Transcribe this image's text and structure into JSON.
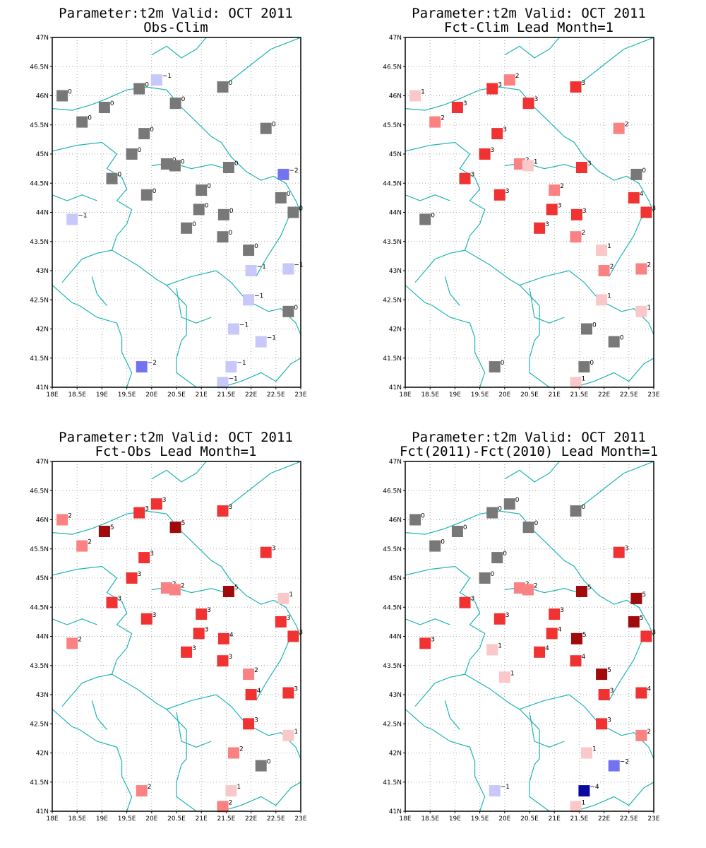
{
  "figure": {
    "colors": {
      "-4": "#0a0aa0",
      "-2": "#7373f0",
      "-1": "#c8c8fa",
      "0": "#787878",
      "1": "#fac8c8",
      "2": "#fa8282",
      "3": "#f03232",
      "4": "#f03232",
      "5": "#a00a0a"
    },
    "coast_color": "#1eb4b4",
    "grid": true
  },
  "chart_data": [
    {
      "type": "scatter",
      "title": "Parameter:t2m Valid: OCT 2011",
      "subtitle": "Obs-Clim",
      "xlim": [
        18,
        23
      ],
      "ylim": [
        41,
        47
      ],
      "xticks": [
        "18E",
        "18.5E",
        "19E",
        "19.5E",
        "20E",
        "20.5E",
        "21E",
        "21.5E",
        "22E",
        "22.5E",
        "23E"
      ],
      "yticks": [
        "41N",
        "41.5N",
        "42N",
        "42.5N",
        "43N",
        "43.5N",
        "44N",
        "44.5N",
        "45N",
        "45.5N",
        "46N",
        "46.5N",
        "47N"
      ],
      "points": [
        {
          "lon": 18.2,
          "lat": 46.0,
          "v": 0
        },
        {
          "lon": 18.6,
          "lat": 45.55,
          "v": 0
        },
        {
          "lon": 19.05,
          "lat": 45.8,
          "v": 0
        },
        {
          "lon": 19.75,
          "lat": 46.12,
          "v": 0
        },
        {
          "lon": 20.1,
          "lat": 46.27,
          "v": -1
        },
        {
          "lon": 20.48,
          "lat": 45.87,
          "v": 0
        },
        {
          "lon": 21.43,
          "lat": 46.15,
          "v": 0
        },
        {
          "lon": 19.85,
          "lat": 45.35,
          "v": 0
        },
        {
          "lon": 19.6,
          "lat": 45.0,
          "v": 0
        },
        {
          "lon": 20.3,
          "lat": 44.83,
          "v": 0
        },
        {
          "lon": 20.47,
          "lat": 44.8,
          "v": 0
        },
        {
          "lon": 21.55,
          "lat": 44.77,
          "v": 0
        },
        {
          "lon": 22.3,
          "lat": 45.44,
          "v": 0
        },
        {
          "lon": 22.65,
          "lat": 44.65,
          "v": -2
        },
        {
          "lon": 19.2,
          "lat": 44.58,
          "v": 0
        },
        {
          "lon": 19.9,
          "lat": 44.3,
          "v": 0
        },
        {
          "lon": 21.0,
          "lat": 44.38,
          "v": 0
        },
        {
          "lon": 20.95,
          "lat": 44.05,
          "v": 0
        },
        {
          "lon": 21.45,
          "lat": 43.96,
          "v": 0
        },
        {
          "lon": 20.7,
          "lat": 43.73,
          "v": 0
        },
        {
          "lon": 21.43,
          "lat": 43.58,
          "v": 0
        },
        {
          "lon": 22.6,
          "lat": 44.25,
          "v": 0
        },
        {
          "lon": 22.85,
          "lat": 44.0,
          "v": 0
        },
        {
          "lon": 18.4,
          "lat": 43.88,
          "v": -1
        },
        {
          "lon": 21.95,
          "lat": 43.35,
          "v": 0
        },
        {
          "lon": 22.0,
          "lat": 43.0,
          "v": -1
        },
        {
          "lon": 22.75,
          "lat": 43.03,
          "v": -1
        },
        {
          "lon": 21.95,
          "lat": 42.5,
          "v": -1
        },
        {
          "lon": 22.75,
          "lat": 42.3,
          "v": 0
        },
        {
          "lon": 21.65,
          "lat": 42.0,
          "v": -1
        },
        {
          "lon": 22.2,
          "lat": 41.78,
          "v": -1
        },
        {
          "lon": 19.8,
          "lat": 41.35,
          "v": -2
        },
        {
          "lon": 21.6,
          "lat": 41.35,
          "v": -1
        },
        {
          "lon": 21.43,
          "lat": 41.08,
          "v": -1
        }
      ]
    },
    {
      "type": "scatter",
      "title": "Parameter:t2m Valid: OCT 2011",
      "subtitle": "Fct-Clim Lead Month=1",
      "xlim": [
        18,
        23
      ],
      "ylim": [
        41,
        47
      ],
      "xticks": [
        "18E",
        "18.5E",
        "19E",
        "19.5E",
        "20E",
        "20.5E",
        "21E",
        "21.5E",
        "22E",
        "22.5E",
        "23E"
      ],
      "yticks": [
        "41N",
        "41.5N",
        "42N",
        "42.5N",
        "43N",
        "43.5N",
        "44N",
        "44.5N",
        "45N",
        "45.5N",
        "46N",
        "46.5N",
        "47N"
      ],
      "points": [
        {
          "lon": 18.2,
          "lat": 46.0,
          "v": 1
        },
        {
          "lon": 18.6,
          "lat": 45.55,
          "v": 2
        },
        {
          "lon": 19.05,
          "lat": 45.8,
          "v": 3
        },
        {
          "lon": 19.75,
          "lat": 46.12,
          "v": 3
        },
        {
          "lon": 20.1,
          "lat": 46.27,
          "v": 2
        },
        {
          "lon": 20.48,
          "lat": 45.87,
          "v": 3
        },
        {
          "lon": 21.43,
          "lat": 46.15,
          "v": 3
        },
        {
          "lon": 19.85,
          "lat": 45.35,
          "v": 3
        },
        {
          "lon": 19.6,
          "lat": 45.0,
          "v": 3
        },
        {
          "lon": 20.3,
          "lat": 44.83,
          "v": 2
        },
        {
          "lon": 20.47,
          "lat": 44.8,
          "v": 1
        },
        {
          "lon": 21.55,
          "lat": 44.77,
          "v": 3
        },
        {
          "lon": 22.3,
          "lat": 45.44,
          "v": 2
        },
        {
          "lon": 22.65,
          "lat": 44.65,
          "v": 0
        },
        {
          "lon": 19.2,
          "lat": 44.58,
          "v": 3
        },
        {
          "lon": 19.9,
          "lat": 44.3,
          "v": 3
        },
        {
          "lon": 21.0,
          "lat": 44.38,
          "v": 2
        },
        {
          "lon": 20.95,
          "lat": 44.05,
          "v": 3
        },
        {
          "lon": 21.45,
          "lat": 43.96,
          "v": 3
        },
        {
          "lon": 20.7,
          "lat": 43.73,
          "v": 3
        },
        {
          "lon": 21.43,
          "lat": 43.58,
          "v": 2
        },
        {
          "lon": 22.6,
          "lat": 44.25,
          "v": 4
        },
        {
          "lon": 22.85,
          "lat": 44.0,
          "v": 3
        },
        {
          "lon": 18.4,
          "lat": 43.88,
          "v": 0
        },
        {
          "lon": 21.95,
          "lat": 43.35,
          "v": 1
        },
        {
          "lon": 22.0,
          "lat": 43.0,
          "v": 2
        },
        {
          "lon": 22.75,
          "lat": 43.03,
          "v": 2
        },
        {
          "lon": 21.95,
          "lat": 42.5,
          "v": 1
        },
        {
          "lon": 22.75,
          "lat": 42.3,
          "v": 1
        },
        {
          "lon": 21.65,
          "lat": 42.0,
          "v": 0
        },
        {
          "lon": 22.2,
          "lat": 41.78,
          "v": 0
        },
        {
          "lon": 19.8,
          "lat": 41.35,
          "v": 0
        },
        {
          "lon": 21.6,
          "lat": 41.35,
          "v": 0
        },
        {
          "lon": 21.43,
          "lat": 41.08,
          "v": 1
        }
      ]
    },
    {
      "type": "scatter",
      "title": "Parameter:t2m Valid: OCT 2011",
      "subtitle": "Fct-Obs Lead Month=1",
      "xlim": [
        18,
        23
      ],
      "ylim": [
        41,
        47
      ],
      "xticks": [
        "18E",
        "18.5E",
        "19E",
        "19.5E",
        "20E",
        "20.5E",
        "21E",
        "21.5E",
        "22E",
        "22.5E",
        "23E"
      ],
      "yticks": [
        "41N",
        "41.5N",
        "42N",
        "42.5N",
        "43N",
        "43.5N",
        "44N",
        "44.5N",
        "45N",
        "45.5N",
        "46N",
        "46.5N",
        "47N"
      ],
      "points": [
        {
          "lon": 18.2,
          "lat": 46.0,
          "v": 2
        },
        {
          "lon": 18.6,
          "lat": 45.55,
          "v": 2
        },
        {
          "lon": 19.05,
          "lat": 45.8,
          "v": 5
        },
        {
          "lon": 19.75,
          "lat": 46.12,
          "v": 3
        },
        {
          "lon": 20.1,
          "lat": 46.27,
          "v": 3
        },
        {
          "lon": 20.48,
          "lat": 45.87,
          "v": 5
        },
        {
          "lon": 21.43,
          "lat": 46.15,
          "v": 3
        },
        {
          "lon": 19.85,
          "lat": 45.35,
          "v": 3
        },
        {
          "lon": 19.6,
          "lat": 45.0,
          "v": 3
        },
        {
          "lon": 20.3,
          "lat": 44.83,
          "v": 2
        },
        {
          "lon": 20.47,
          "lat": 44.8,
          "v": 2
        },
        {
          "lon": 21.55,
          "lat": 44.77,
          "v": 5
        },
        {
          "lon": 22.3,
          "lat": 45.44,
          "v": 3
        },
        {
          "lon": 22.65,
          "lat": 44.65,
          "v": 1
        },
        {
          "lon": 19.2,
          "lat": 44.58,
          "v": 3
        },
        {
          "lon": 19.9,
          "lat": 44.3,
          "v": 3
        },
        {
          "lon": 21.0,
          "lat": 44.38,
          "v": 3
        },
        {
          "lon": 20.95,
          "lat": 44.05,
          "v": 3
        },
        {
          "lon": 21.45,
          "lat": 43.96,
          "v": 4
        },
        {
          "lon": 20.7,
          "lat": 43.73,
          "v": 3
        },
        {
          "lon": 21.43,
          "lat": 43.58,
          "v": 3
        },
        {
          "lon": 22.6,
          "lat": 44.25,
          "v": 3
        },
        {
          "lon": 22.85,
          "lat": 44.0,
          "v": 3
        },
        {
          "lon": 18.4,
          "lat": 43.88,
          "v": 2
        },
        {
          "lon": 21.95,
          "lat": 43.35,
          "v": 2
        },
        {
          "lon": 22.0,
          "lat": 43.0,
          "v": 4
        },
        {
          "lon": 22.75,
          "lat": 43.03,
          "v": 3
        },
        {
          "lon": 21.95,
          "lat": 42.5,
          "v": 3
        },
        {
          "lon": 22.75,
          "lat": 42.3,
          "v": 1
        },
        {
          "lon": 21.65,
          "lat": 42.0,
          "v": 2
        },
        {
          "lon": 22.2,
          "lat": 41.78,
          "v": 0
        },
        {
          "lon": 19.8,
          "lat": 41.35,
          "v": 2
        },
        {
          "lon": 21.6,
          "lat": 41.35,
          "v": 1
        },
        {
          "lon": 21.43,
          "lat": 41.08,
          "v": 2
        }
      ]
    },
    {
      "type": "scatter",
      "title": "Parameter:t2m Valid: OCT 2011",
      "subtitle": "Fct(2011)-Fct(2010) Lead Month=1",
      "xlim": [
        18,
        23
      ],
      "ylim": [
        41,
        47
      ],
      "xticks": [
        "18E",
        "18.5E",
        "19E",
        "19.5E",
        "20E",
        "20.5E",
        "21E",
        "21.5E",
        "22E",
        "22.5E",
        "23E"
      ],
      "yticks": [
        "41N",
        "41.5N",
        "42N",
        "42.5N",
        "43N",
        "43.5N",
        "44N",
        "44.5N",
        "45N",
        "45.5N",
        "46N",
        "46.5N",
        "47N"
      ],
      "points": [
        {
          "lon": 18.2,
          "lat": 46.0,
          "v": 0
        },
        {
          "lon": 18.6,
          "lat": 45.55,
          "v": 0
        },
        {
          "lon": 19.05,
          "lat": 45.8,
          "v": 0
        },
        {
          "lon": 19.75,
          "lat": 46.12,
          "v": 0
        },
        {
          "lon": 20.1,
          "lat": 46.27,
          "v": 0
        },
        {
          "lon": 20.48,
          "lat": 45.87,
          "v": 0
        },
        {
          "lon": 21.43,
          "lat": 46.15,
          "v": 0
        },
        {
          "lon": 19.85,
          "lat": 45.35,
          "v": 0
        },
        {
          "lon": 19.6,
          "lat": 45.0,
          "v": 0
        },
        {
          "lon": 20.3,
          "lat": 44.83,
          "v": 2
        },
        {
          "lon": 20.47,
          "lat": 44.8,
          "v": 2
        },
        {
          "lon": 21.55,
          "lat": 44.77,
          "v": 5
        },
        {
          "lon": 22.3,
          "lat": 45.44,
          "v": 3
        },
        {
          "lon": 22.65,
          "lat": 44.65,
          "v": 5
        },
        {
          "lon": 19.2,
          "lat": 44.58,
          "v": 3
        },
        {
          "lon": 19.9,
          "lat": 44.3,
          "v": 3
        },
        {
          "lon": 21.0,
          "lat": 44.38,
          "v": 3
        },
        {
          "lon": 20.95,
          "lat": 44.05,
          "v": 4
        },
        {
          "lon": 21.45,
          "lat": 43.96,
          "v": 5
        },
        {
          "lon": 20.7,
          "lat": 43.73,
          "v": 4
        },
        {
          "lon": 21.43,
          "lat": 43.58,
          "v": 4
        },
        {
          "lon": 22.6,
          "lat": 44.25,
          "v": 5
        },
        {
          "lon": 22.85,
          "lat": 44.0,
          "v": 3
        },
        {
          "lon": 18.4,
          "lat": 43.88,
          "v": 3
        },
        {
          "lon": 19.75,
          "lat": 43.77,
          "v": 1
        },
        {
          "lon": 20.0,
          "lat": 43.3,
          "v": 1
        },
        {
          "lon": 21.95,
          "lat": 43.35,
          "v": 5
        },
        {
          "lon": 22.0,
          "lat": 43.0,
          "v": 3
        },
        {
          "lon": 22.75,
          "lat": 43.03,
          "v": 4
        },
        {
          "lon": 21.95,
          "lat": 42.5,
          "v": 3
        },
        {
          "lon": 22.75,
          "lat": 42.3,
          "v": 2
        },
        {
          "lon": 21.65,
          "lat": 42.0,
          "v": 1
        },
        {
          "lon": 22.2,
          "lat": 41.78,
          "v": -2
        },
        {
          "lon": 19.8,
          "lat": 41.35,
          "v": -1
        },
        {
          "lon": 21.6,
          "lat": 41.35,
          "v": -4
        },
        {
          "lon": 21.43,
          "lat": 41.08,
          "v": 1
        }
      ]
    }
  ]
}
